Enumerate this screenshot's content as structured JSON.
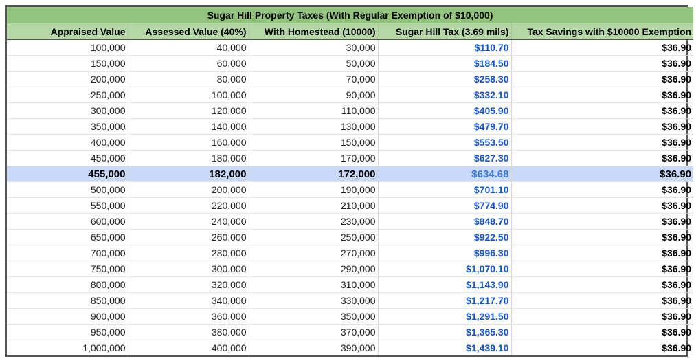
{
  "table": {
    "title": "Sugar Hill Property Taxes (With Regular Exemption of $10,000)",
    "headers": [
      "Appraised Value",
      "Assessed Value (40%)",
      "With Homestead (10000)",
      "Sugar Hill Tax (3.69 mils)",
      "Tax Savings with $10000 Exemption"
    ],
    "rows": [
      [
        "100,000",
        "40,000",
        "30,000",
        "$110.70",
        "$36.90"
      ],
      [
        "150,000",
        "60,000",
        "50,000",
        "$184.50",
        "$36.90"
      ],
      [
        "200,000",
        "80,000",
        "70,000",
        "$258.30",
        "$36.90"
      ],
      [
        "250,000",
        "100,000",
        "90,000",
        "$332.10",
        "$36.90"
      ],
      [
        "300,000",
        "120,000",
        "110,000",
        "$405.90",
        "$36.90"
      ],
      [
        "350,000",
        "140,000",
        "130,000",
        "$479.70",
        "$36.90"
      ],
      [
        "400,000",
        "160,000",
        "150,000",
        "$553.50",
        "$36.90"
      ],
      [
        "450,000",
        "180,000",
        "170,000",
        "$627.30",
        "$36.90"
      ],
      [
        "455,000",
        "182,000",
        "172,000",
        "$634.68",
        "$36.90"
      ],
      [
        "500,000",
        "200,000",
        "190,000",
        "$701.10",
        "$36.90"
      ],
      [
        "550,000",
        "220,000",
        "210,000",
        "$774.90",
        "$36.90"
      ],
      [
        "600,000",
        "240,000",
        "230,000",
        "$848.70",
        "$36.90"
      ],
      [
        "650,000",
        "260,000",
        "250,000",
        "$922.50",
        "$36.90"
      ],
      [
        "700,000",
        "280,000",
        "270,000",
        "$996.30",
        "$36.90"
      ],
      [
        "750,000",
        "300,000",
        "290,000",
        "$1,070.10",
        "$36.90"
      ],
      [
        "800,000",
        "320,000",
        "310,000",
        "$1,143.90",
        "$36.90"
      ],
      [
        "850,000",
        "340,000",
        "330,000",
        "$1,217.70",
        "$36.90"
      ],
      [
        "900,000",
        "360,000",
        "350,000",
        "$1,291.50",
        "$36.90"
      ],
      [
        "950,000",
        "380,000",
        "370,000",
        "$1,365.30",
        "$36.90"
      ],
      [
        "1,000,000",
        "400,000",
        "390,000",
        "$1,439.10",
        "$36.90"
      ]
    ],
    "highlight_row": 8,
    "colors": {
      "title_bg": "#93c47d",
      "header_bg": "#b6d7a8",
      "highlight_bg": "#c9daf8",
      "tax_text": "#1155cc"
    }
  }
}
